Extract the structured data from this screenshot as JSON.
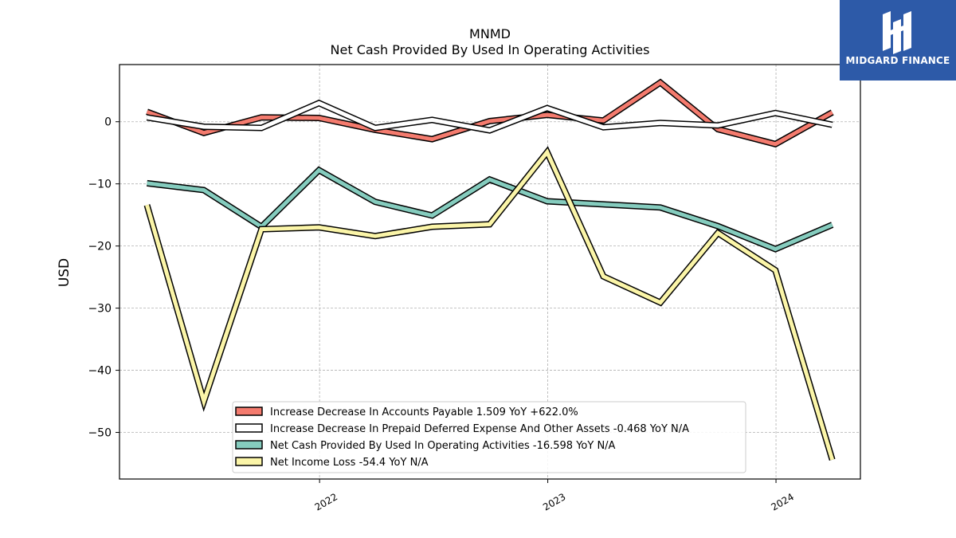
{
  "chart_data": {
    "type": "line",
    "title": "MNMD",
    "subtitle": "Net Cash Provided By Used In Operating Activities",
    "ylabel": "USD",
    "xlabel": "",
    "ylim": [
      -57.5,
      9.2
    ],
    "yticks": [
      0,
      -10,
      -20,
      -30,
      -40,
      -50
    ],
    "yticklabels": [
      "0",
      "−10",
      "−20",
      "−30",
      "−40",
      "−50"
    ],
    "xticks": [
      2022,
      2023,
      2024
    ],
    "xticklabels": [
      "2022",
      "2023",
      "2024"
    ],
    "xlim": [
      "2021-02-15",
      "2024-05-15"
    ],
    "x": [
      "2021-03-31",
      "2021-06-30",
      "2021-09-30",
      "2021-12-31",
      "2022-03-31",
      "2022-06-30",
      "2022-09-30",
      "2022-12-31",
      "2023-03-31",
      "2023-06-30",
      "2023-09-30",
      "2023-12-31",
      "2024-03-31"
    ],
    "grid": true,
    "legend_position": "lower-center",
    "series": [
      {
        "name": "Increase Decrease In Accounts Payable",
        "legend_label": "Increase Decrease In Accounts Payable  1.509 YoY +622.0%",
        "color": "#f47b6e",
        "values": [
          1.6,
          -1.8,
          0.7,
          0.6,
          -1.3,
          -2.8,
          0.1,
          1.1,
          0.2,
          6.3,
          -1.2,
          -3.6,
          1.5
        ]
      },
      {
        "name": "Increase Decrease In Prepaid Deferred Expense And Other Assets",
        "legend_label": "Increase Decrease In Prepaid Deferred Expense And Other Assets  -0.468 YoY N/A",
        "color": "#ffffff",
        "values": [
          0.7,
          -0.8,
          -1.0,
          3.0,
          -1.0,
          0.3,
          -1.4,
          2.2,
          -0.9,
          -0.2,
          -0.6,
          1.4,
          -0.5
        ]
      },
      {
        "name": "Net Cash Provided By Used In Operating Activities",
        "legend_label": "Net Cash Provided By Used In Operating Activities  -16.598 YoY N/A",
        "color": "#85ccbe",
        "values": [
          -9.9,
          -11.0,
          -16.9,
          -7.8,
          -12.9,
          -15.1,
          -9.3,
          -12.8,
          -13.3,
          -13.8,
          -16.8,
          -20.5,
          -16.6
        ]
      },
      {
        "name": "Net Income Loss",
        "legend_label": "Net Income Loss  -54.4 YoY N/A",
        "color": "#fbf5a8",
        "values": [
          -13.4,
          -45.0,
          -17.3,
          -17.0,
          -18.4,
          -16.9,
          -16.5,
          -4.9,
          -24.9,
          -29.1,
          -17.9,
          -23.9,
          -54.4
        ]
      }
    ]
  },
  "logo": {
    "text": "MIDGARD FINANCE",
    "color": "#2d5aa8"
  }
}
